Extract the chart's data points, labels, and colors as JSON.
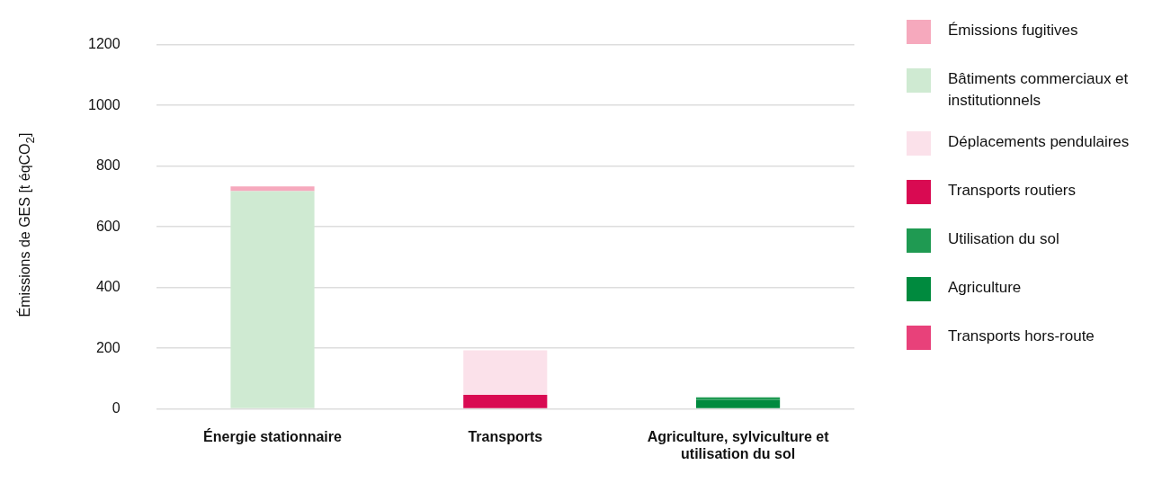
{
  "chart_data": {
    "type": "bar",
    "stacked": true,
    "ylabel": "Émissions de GES [t éqCO$_{2}$]",
    "categories": [
      "Énergie stationnaire",
      "Transports",
      "Agriculture, sylviculture et utilisation du sol"
    ],
    "series": [
      {
        "name": "Transports hors-route",
        "color": "#e8417a",
        "values": [
          null,
          null,
          null
        ]
      },
      {
        "name": "Agriculture",
        "color": "#008a3e",
        "values": [
          null,
          null,
          30
        ]
      },
      {
        "name": "Utilisation du sol",
        "color": "#1f9a52",
        "values": [
          null,
          null,
          8
        ]
      },
      {
        "name": "Transports routiers",
        "color": "#d90a52",
        "values": [
          null,
          46,
          null
        ]
      },
      {
        "name": "Déplacements pendulaires",
        "color": "#fbe1ea",
        "values": [
          null,
          147,
          null
        ]
      },
      {
        "name": "Bâtiments commerciaux et institutionnels",
        "color": "#cfead2",
        "values": [
          717,
          null,
          null
        ]
      },
      {
        "name": "Émissions fugitives",
        "color": "#f6a9bd",
        "values": [
          16,
          null,
          null
        ]
      }
    ],
    "ylim": [
      0,
      1200
    ],
    "yticks": [
      0,
      200,
      400,
      600,
      800,
      1000,
      1200
    ],
    "grid": "y",
    "legend": "right"
  }
}
